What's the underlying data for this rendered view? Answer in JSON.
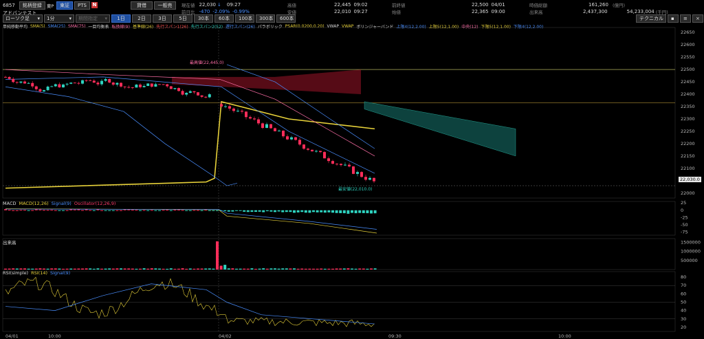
{
  "header": {
    "code": "6857",
    "name": "アドバンテスト",
    "buttons": [
      "銘柄登録",
      "東P"
    ],
    "market_tabs": [
      "東証",
      "PTS"
    ],
    "icon_letter": "N",
    "right_buttons": [
      "貸借",
      "一般売"
    ],
    "stats": [
      {
        "label": "現在値",
        "value": "22,030",
        "extra": "↓",
        "time": "09:27"
      },
      {
        "label": "前日比",
        "value": "-470",
        "extra": "-2.09%",
        "time": "-0.99%"
      },
      {
        "label": "高値",
        "value": "22,445",
        "time": "09:02"
      },
      {
        "label": "安値",
        "value": "22,010",
        "time": "09:27"
      },
      {
        "label": "前終値",
        "value": "22,500",
        "time": "04/01"
      },
      {
        "label": "始値",
        "value": "22,365",
        "time": "09:00"
      },
      {
        "label": "時価総額",
        "value": "161,260",
        "unit": "(億円)"
      },
      {
        "label": "出来高",
        "value": "2,437,300"
      },
      {
        "label": "",
        "value": "54,233,004",
        "unit": "(千円)"
      }
    ],
    "chart_type": "ローソク足",
    "interval": "1分",
    "period_placeholder": "期間指定",
    "ranges": [
      "1日",
      "2日",
      "3日",
      "5日",
      "30本",
      "60本",
      "100本",
      "300本",
      "600本"
    ],
    "technical_button": "テクニカル"
  },
  "legend_items": [
    {
      "text": "単純移動平均",
      "color": "#dddddd"
    },
    {
      "text": "SMA(5)",
      "color": "#e8d23a"
    },
    {
      "text": "SMA(25)",
      "color": "#4a8fff"
    },
    {
      "text": "SMA(75)",
      "color": "#ff6fa8"
    },
    {
      "text": "一目均衡表",
      "color": "#dddddd"
    },
    {
      "text": "転換線(9)",
      "color": "#ff6fa8"
    },
    {
      "text": "基準線(26)",
      "color": "#e8d23a"
    },
    {
      "text": "先行スパン1(26)",
      "color": "#ff5050"
    },
    {
      "text": "先行スパン2(52)",
      "color": "#2ed3c0"
    },
    {
      "text": "遅行スパン(26)",
      "color": "#4a8fff"
    },
    {
      "text": "パラボリック",
      "color": "#dddddd"
    },
    {
      "text": "PSAR(0.0200,0.20)",
      "color": "#e8d23a"
    },
    {
      "text": "VWAP",
      "color": "#dddddd"
    },
    {
      "text": "VWAP",
      "color": "#e8d23a"
    },
    {
      "text": "ボリンジャーバンド",
      "color": "#dddddd"
    },
    {
      "text": "上限4(12,2.00)",
      "color": "#4a8fff"
    },
    {
      "text": "上限5(12,1.00)",
      "color": "#e8d23a"
    },
    {
      "text": "中央(12)",
      "color": "#ff6fa8"
    },
    {
      "text": "下限5(12,1.00)",
      "color": "#e8d23a"
    },
    {
      "text": "下限4(12,2.00)",
      "color": "#4a8fff"
    }
  ],
  "price_axis": [
    "22650",
    "22600",
    "22550",
    "22500",
    "22450",
    "22400",
    "22350",
    "22300",
    "22250",
    "22200",
    "22150",
    "22100",
    "22050",
    "22000"
  ],
  "annotations": {
    "high": "最高値(22,445.0)",
    "low": "最安値(22,010.0)",
    "current_badge": "22,030.0"
  },
  "macd": {
    "legend": [
      {
        "text": "MACD",
        "color": "#dddddd"
      },
      {
        "text": "MACD(12,26)",
        "color": "#e8d23a"
      },
      {
        "text": "Signal(9)",
        "color": "#4a8fff"
      },
      {
        "text": "Oscillator(12,26,9)",
        "color": "#ff3b6b"
      }
    ],
    "axis": [
      "25",
      "0",
      "-25",
      "-50",
      "-75"
    ]
  },
  "volume": {
    "label": "出来高",
    "axis": [
      "1500000",
      "1000000",
      "500000"
    ]
  },
  "rsi": {
    "legend": [
      {
        "text": "RSI(simple)",
        "color": "#dddddd"
      },
      {
        "text": "RSI(14)",
        "color": "#e8d23a"
      },
      {
        "text": "Signal(9)",
        "color": "#4a8fff"
      }
    ],
    "axis": [
      "80",
      "70",
      "60",
      "50",
      "40",
      "30",
      "20"
    ]
  },
  "time_axis": [
    "04/01",
    "10:00",
    "04/02",
    "09:30",
    "10:00"
  ],
  "colors": {
    "up": "#2ed3c0",
    "down": "#ff2d5a",
    "sma5": "#e8d23a",
    "sma25": "#4a8fff",
    "sma75": "#ff6fa8",
    "kumo_red": "#7a1020",
    "kumo_green": "#0f4a45"
  }
}
